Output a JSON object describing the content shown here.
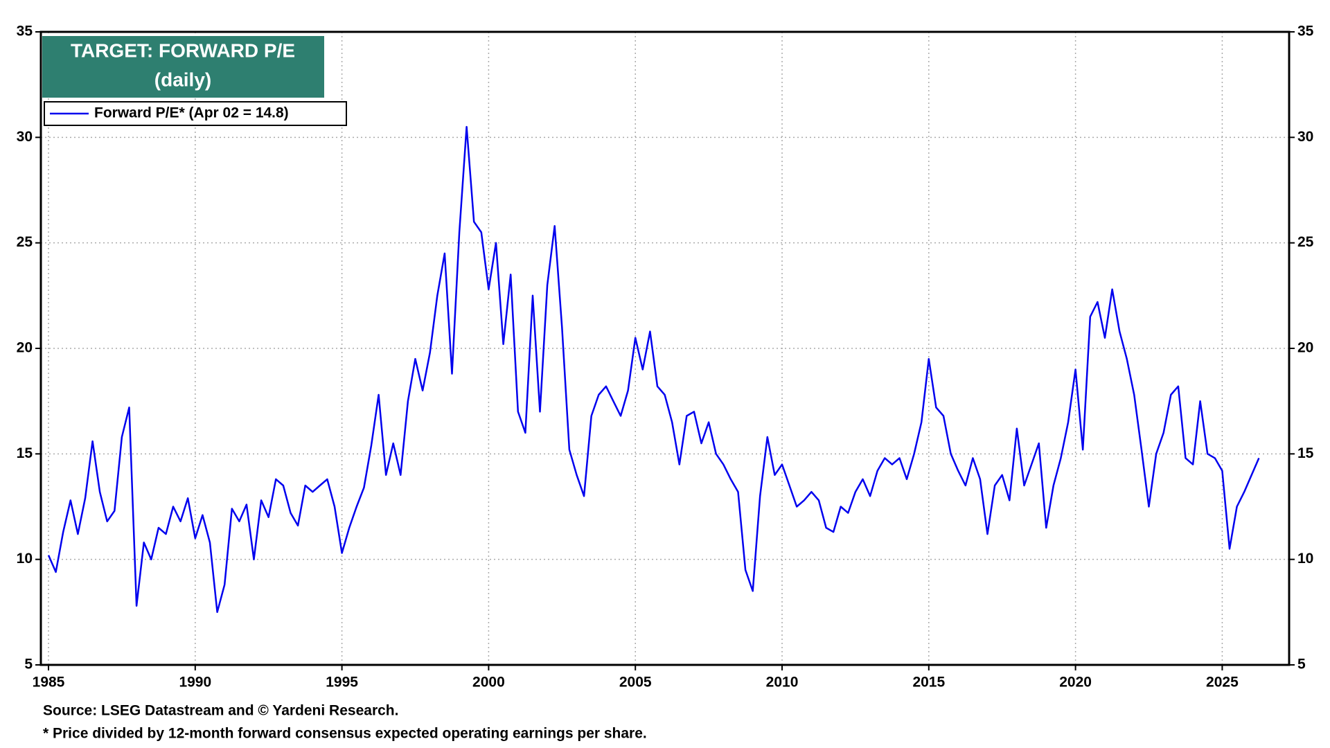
{
  "chart_data": {
    "type": "line",
    "title": "TARGET: FORWARD P/E",
    "subtitle": "(daily)",
    "source": "Source: LSEG Datastream and © Yardeni Research.",
    "footnote": "* Price divided by 12-month forward consensus expected operating earnings per share.",
    "x": [
      1985.0,
      1985.25,
      1985.5,
      1985.75,
      1986.0,
      1986.25,
      1986.5,
      1986.75,
      1987.0,
      1987.25,
      1987.5,
      1987.75,
      1988.0,
      1988.25,
      1988.5,
      1988.75,
      1989.0,
      1989.25,
      1989.5,
      1989.75,
      1990.0,
      1990.25,
      1990.5,
      1990.75,
      1991.0,
      1991.25,
      1991.5,
      1991.75,
      1992.0,
      1992.25,
      1992.5,
      1992.75,
      1993.0,
      1993.25,
      1993.5,
      1993.75,
      1994.0,
      1994.25,
      1994.5,
      1994.75,
      1995.0,
      1995.25,
      1995.5,
      1995.75,
      1996.0,
      1996.25,
      1996.5,
      1996.75,
      1997.0,
      1997.25,
      1997.5,
      1997.75,
      1998.0,
      1998.25,
      1998.5,
      1998.75,
      1999.0,
      1999.25,
      1999.5,
      1999.75,
      2000.0,
      2000.25,
      2000.5,
      2000.75,
      2001.0,
      2001.25,
      2001.5,
      2001.75,
      2002.0,
      2002.25,
      2002.5,
      2002.75,
      2003.0,
      2003.25,
      2003.5,
      2003.75,
      2004.0,
      2004.25,
      2004.5,
      2004.75,
      2005.0,
      2005.25,
      2005.5,
      2005.75,
      2006.0,
      2006.25,
      2006.5,
      2006.75,
      2007.0,
      2007.25,
      2007.5,
      2007.75,
      2008.0,
      2008.25,
      2008.5,
      2008.75,
      2009.0,
      2009.25,
      2009.5,
      2009.75,
      2010.0,
      2010.25,
      2010.5,
      2010.75,
      2011.0,
      2011.25,
      2011.5,
      2011.75,
      2012.0,
      2012.25,
      2012.5,
      2012.75,
      2013.0,
      2013.25,
      2013.5,
      2013.75,
      2014.0,
      2014.25,
      2014.5,
      2014.75,
      2015.0,
      2015.25,
      2015.5,
      2015.75,
      2016.0,
      2016.25,
      2016.5,
      2016.75,
      2017.0,
      2017.25,
      2017.5,
      2017.75,
      2018.0,
      2018.25,
      2018.5,
      2018.75,
      2019.0,
      2019.25,
      2019.5,
      2019.75,
      2020.0,
      2020.25,
      2020.5,
      2020.75,
      2021.0,
      2021.25,
      2021.5,
      2021.75,
      2022.0,
      2022.25,
      2022.5,
      2022.75,
      2023.0,
      2023.25,
      2023.5,
      2023.75,
      2024.0,
      2024.25,
      2024.5,
      2024.75,
      2025.0,
      2025.25,
      2025.5,
      2025.75,
      2026.0,
      2026.25
    ],
    "series": [
      {
        "name": "Forward P/E* (Apr 02 = 14.8)",
        "color": "#0000ee",
        "values": [
          10.2,
          9.4,
          11.3,
          12.8,
          11.2,
          12.9,
          15.6,
          13.2,
          11.8,
          12.3,
          15.8,
          17.2,
          7.8,
          10.8,
          10.0,
          11.5,
          11.2,
          12.5,
          11.8,
          12.9,
          11.0,
          12.1,
          10.8,
          7.5,
          8.8,
          12.4,
          11.8,
          12.6,
          10.0,
          12.8,
          12.0,
          13.8,
          13.5,
          12.2,
          11.6,
          13.5,
          13.2,
          13.5,
          13.8,
          12.5,
          10.3,
          11.5,
          12.5,
          13.4,
          15.4,
          17.8,
          14.0,
          15.5,
          14.0,
          17.5,
          19.5,
          18.0,
          19.8,
          22.5,
          24.5,
          18.8,
          25.5,
          30.5,
          26.0,
          25.5,
          22.8,
          25.0,
          20.2,
          23.5,
          17.0,
          16.0,
          22.5,
          17.0,
          23.0,
          25.8,
          21.0,
          15.2,
          14.0,
          13.0,
          16.8,
          17.8,
          18.2,
          17.5,
          16.8,
          18.0,
          20.5,
          19.0,
          20.8,
          18.2,
          17.8,
          16.5,
          14.5,
          16.8,
          17.0,
          15.5,
          16.5,
          15.0,
          14.5,
          13.8,
          13.2,
          9.5,
          8.5,
          13.0,
          15.8,
          14.0,
          14.5,
          13.5,
          12.5,
          12.8,
          13.2,
          12.8,
          11.5,
          11.3,
          12.5,
          12.2,
          13.2,
          13.8,
          13.0,
          14.2,
          14.8,
          14.5,
          14.8,
          13.8,
          15.0,
          16.5,
          19.5,
          17.2,
          16.8,
          15.0,
          14.2,
          13.5,
          14.8,
          13.8,
          11.2,
          13.5,
          14.0,
          12.8,
          16.2,
          13.5,
          14.5,
          15.5,
          11.5,
          13.5,
          14.8,
          16.5,
          19.0,
          15.2,
          21.5,
          22.2,
          20.5,
          22.8,
          20.8,
          19.5,
          17.8,
          15.2,
          12.5,
          15.0,
          16.0,
          17.8,
          18.2,
          14.8,
          14.5,
          17.5,
          15.0,
          14.8,
          14.2,
          10.5,
          12.5,
          13.2,
          14.0,
          14.8
        ]
      }
    ],
    "xlim": [
      1984.74,
      2027.28
    ],
    "xticks": [
      1985,
      1990,
      1995,
      2000,
      2005,
      2010,
      2015,
      2020,
      2025
    ],
    "ylim": [
      5,
      35
    ],
    "yticks": [
      5,
      10,
      15,
      20,
      25,
      30,
      35
    ],
    "y2lim": [
      5,
      35
    ],
    "y2ticks": [
      5,
      10,
      15,
      20,
      25,
      30,
      35
    ],
    "grid": true
  }
}
